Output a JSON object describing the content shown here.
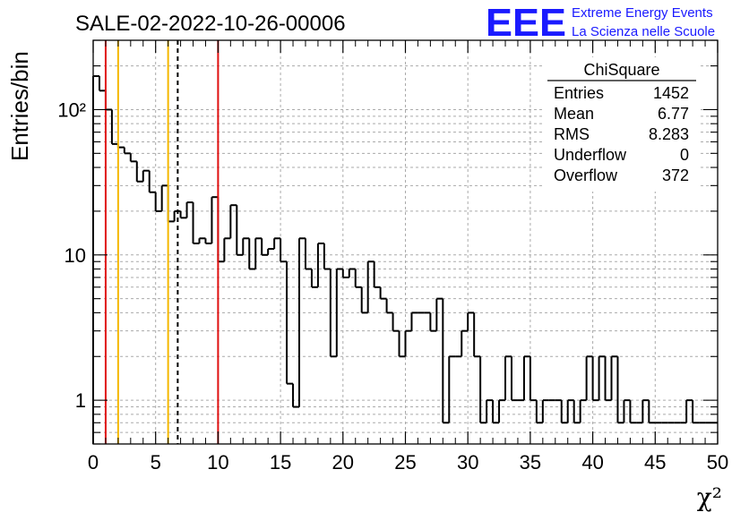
{
  "header": {
    "title": "SALE-02-2022-10-26-00006",
    "logo_mark": "EEE",
    "logo_line1": "Extreme Energy Events",
    "logo_line2": "La Scienza nelle Scuole"
  },
  "stats_box": {
    "title": "ChiSquare",
    "rows": [
      {
        "label": "Entries",
        "value": "1452"
      },
      {
        "label": "Mean",
        "value": "6.77"
      },
      {
        "label": "RMS",
        "value": "8.283"
      },
      {
        "label": "Underflow",
        "value": "0"
      },
      {
        "label": "Overflow",
        "value": "372"
      }
    ]
  },
  "colors": {
    "red_line": "#e01010",
    "orange_line": "#f5b800",
    "histogram": "#000000",
    "logo": "#1a1aff",
    "grid": "#aaaaaa"
  },
  "chart_data": {
    "type": "bar",
    "style": "step-histogram",
    "xlabel": "χ²",
    "ylabel": "Entries/bin",
    "xlim": [
      0,
      50
    ],
    "ylim": [
      0.5,
      300
    ],
    "log_y": true,
    "grid": true,
    "bin_width": 0.5,
    "x_ticks": [
      0,
      5,
      10,
      15,
      20,
      25,
      30,
      35,
      40,
      45,
      50
    ],
    "y_ticks": [
      {
        "value": 1,
        "label": "1"
      },
      {
        "value": 10,
        "label": "10"
      },
      {
        "value": 100,
        "label": "10²"
      }
    ],
    "bins": [
      {
        "x": 0.0,
        "y": 170
      },
      {
        "x": 0.5,
        "y": 135
      },
      {
        "x": 1.0,
        "y": 100
      },
      {
        "x": 1.5,
        "y": 58
      },
      {
        "x": 2.0,
        "y": 55
      },
      {
        "x": 2.5,
        "y": 50
      },
      {
        "x": 3.0,
        "y": 44
      },
      {
        "x": 3.5,
        "y": 32
      },
      {
        "x": 4.0,
        "y": 38
      },
      {
        "x": 4.5,
        "y": 27
      },
      {
        "x": 5.0,
        "y": 20
      },
      {
        "x": 5.5,
        "y": 30
      },
      {
        "x": 6.0,
        "y": 17
      },
      {
        "x": 6.5,
        "y": 20
      },
      {
        "x": 7.0,
        "y": 18
      },
      {
        "x": 7.5,
        "y": 23
      },
      {
        "x": 8.0,
        "y": 12
      },
      {
        "x": 8.5,
        "y": 13
      },
      {
        "x": 9.0,
        "y": 12
      },
      {
        "x": 9.5,
        "y": 25
      },
      {
        "x": 10.0,
        "y": 9
      },
      {
        "x": 10.5,
        "y": 13
      },
      {
        "x": 11.0,
        "y": 22
      },
      {
        "x": 11.5,
        "y": 10
      },
      {
        "x": 12.0,
        "y": 13
      },
      {
        "x": 12.5,
        "y": 8
      },
      {
        "x": 13.0,
        "y": 13
      },
      {
        "x": 13.5,
        "y": 10
      },
      {
        "x": 14.0,
        "y": 11
      },
      {
        "x": 14.5,
        "y": 13
      },
      {
        "x": 15.0,
        "y": 9
      },
      {
        "x": 15.5,
        "y": 1.3
      },
      {
        "x": 16.0,
        "y": 0.9
      },
      {
        "x": 16.5,
        "y": 13
      },
      {
        "x": 17.0,
        "y": 8
      },
      {
        "x": 17.5,
        "y": 6
      },
      {
        "x": 18.0,
        "y": 12
      },
      {
        "x": 18.5,
        "y": 8
      },
      {
        "x": 19.0,
        "y": 2
      },
      {
        "x": 19.5,
        "y": 8
      },
      {
        "x": 20.0,
        "y": 7
      },
      {
        "x": 20.5,
        "y": 8
      },
      {
        "x": 21.0,
        "y": 6
      },
      {
        "x": 21.5,
        "y": 4
      },
      {
        "x": 22.0,
        "y": 9
      },
      {
        "x": 22.5,
        "y": 6
      },
      {
        "x": 23.0,
        "y": 5
      },
      {
        "x": 23.5,
        "y": 4
      },
      {
        "x": 24.0,
        "y": 3
      },
      {
        "x": 24.5,
        "y": 2
      },
      {
        "x": 25.0,
        "y": 3
      },
      {
        "x": 25.5,
        "y": 4
      },
      {
        "x": 26.0,
        "y": 4
      },
      {
        "x": 26.5,
        "y": 4
      },
      {
        "x": 27.0,
        "y": 3
      },
      {
        "x": 27.5,
        "y": 5
      },
      {
        "x": 28.0,
        "y": 0.7
      },
      {
        "x": 28.5,
        "y": 2
      },
      {
        "x": 29.0,
        "y": 2
      },
      {
        "x": 29.5,
        "y": 3
      },
      {
        "x": 30.0,
        "y": 4
      },
      {
        "x": 30.5,
        "y": 2
      },
      {
        "x": 31.0,
        "y": 0.7
      },
      {
        "x": 31.5,
        "y": 1
      },
      {
        "x": 32.0,
        "y": 0.7
      },
      {
        "x": 32.5,
        "y": 1
      },
      {
        "x": 33.0,
        "y": 2
      },
      {
        "x": 33.5,
        "y": 1
      },
      {
        "x": 34.0,
        "y": 1
      },
      {
        "x": 34.5,
        "y": 2
      },
      {
        "x": 35.0,
        "y": 1
      },
      {
        "x": 35.5,
        "y": 0.7
      },
      {
        "x": 36.0,
        "y": 1
      },
      {
        "x": 36.5,
        "y": 1
      },
      {
        "x": 37.0,
        "y": 1
      },
      {
        "x": 37.5,
        "y": 0.7
      },
      {
        "x": 38.0,
        "y": 1
      },
      {
        "x": 38.5,
        "y": 0.7
      },
      {
        "x": 39.0,
        "y": 1
      },
      {
        "x": 39.5,
        "y": 2
      },
      {
        "x": 40.0,
        "y": 1
      },
      {
        "x": 40.5,
        "y": 2
      },
      {
        "x": 41.0,
        "y": 1
      },
      {
        "x": 41.5,
        "y": 2
      },
      {
        "x": 42.0,
        "y": 0.7
      },
      {
        "x": 42.5,
        "y": 1
      },
      {
        "x": 43.0,
        "y": 0.7
      },
      {
        "x": 43.5,
        "y": 0.7
      },
      {
        "x": 44.0,
        "y": 1
      },
      {
        "x": 44.5,
        "y": 0.7
      },
      {
        "x": 45.0,
        "y": 0.7
      },
      {
        "x": 45.5,
        "y": 0.7
      },
      {
        "x": 46.0,
        "y": 0.7
      },
      {
        "x": 46.5,
        "y": 0.7
      },
      {
        "x": 47.0,
        "y": 0.7
      },
      {
        "x": 47.5,
        "y": 1
      },
      {
        "x": 48.0,
        "y": 0.7
      },
      {
        "x": 48.5,
        "y": 0.7
      },
      {
        "x": 49.0,
        "y": 0.7
      },
      {
        "x": 49.5,
        "y": 0.7
      }
    ],
    "vertical_lines": [
      {
        "x": 1,
        "color": "red",
        "style": "solid"
      },
      {
        "x": 2,
        "color": "orange",
        "style": "solid"
      },
      {
        "x": 6,
        "color": "orange",
        "style": "solid"
      },
      {
        "x": 6.77,
        "color": "black",
        "style": "dashed"
      },
      {
        "x": 10,
        "color": "red",
        "style": "solid"
      }
    ]
  }
}
